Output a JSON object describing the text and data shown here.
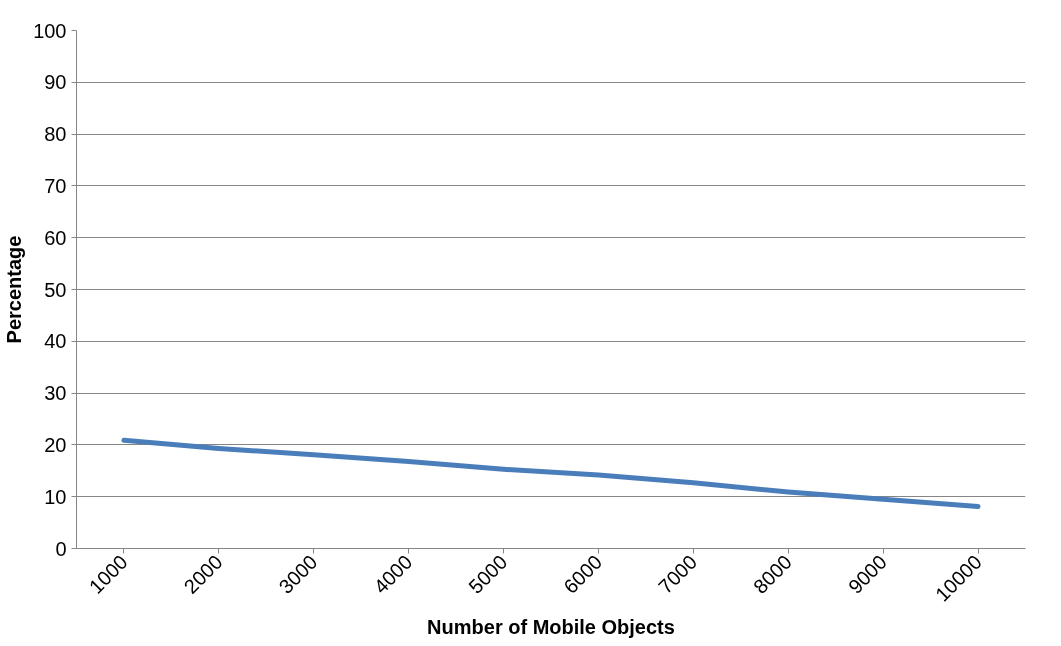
{
  "chart_data": {
    "type": "line",
    "xlabel": "Number of Mobile Objects",
    "ylabel": "Percentage",
    "categories": [
      "1000",
      "2000",
      "3000",
      "4000",
      "5000",
      "6000",
      "7000",
      "8000",
      "9000",
      "10000"
    ],
    "series": [
      {
        "color": "#4a7ebb",
        "values": [
          20.9,
          19.3,
          18.1,
          16.8,
          15.3,
          14.2,
          12.7,
          10.9,
          9.5,
          8.1
        ]
      }
    ],
    "ylim": [
      0,
      100
    ],
    "yticks": [
      0,
      10,
      20,
      30,
      40,
      50,
      60,
      70,
      80,
      90,
      100
    ],
    "grid": "y",
    "marker": "none",
    "line_style": "solid"
  }
}
